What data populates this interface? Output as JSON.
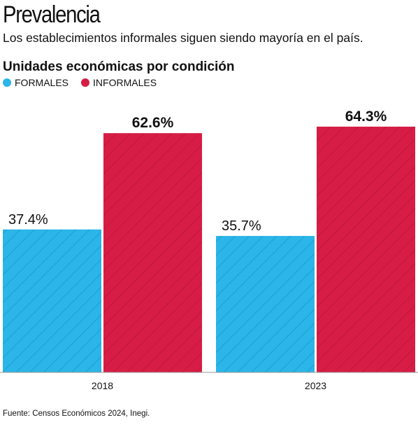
{
  "header": {
    "title": "Prevalencia",
    "subtitle": "Los establecimientos informales siguen siendo mayoría en el país."
  },
  "chart_data": {
    "type": "bar",
    "title": "Unidades económicas por condición",
    "categories": [
      "2018",
      "2023"
    ],
    "series": [
      {
        "name": "FORMALES",
        "values": [
          37.4,
          35.7
        ],
        "labels": [
          "37.4%",
          "35.7%"
        ],
        "color": "#2bb5e8"
      },
      {
        "name": "INFORMALES",
        "values": [
          62.6,
          64.3
        ],
        "labels": [
          "62.6%",
          "64.3%"
        ],
        "color": "#d71d45"
      }
    ],
    "xlabel": "",
    "ylabel": "",
    "ylim": [
      0,
      100
    ],
    "grid": false,
    "legend": "top-left"
  },
  "footer": {
    "source": "Fuente: Censos Económicos 2024, Inegi."
  }
}
